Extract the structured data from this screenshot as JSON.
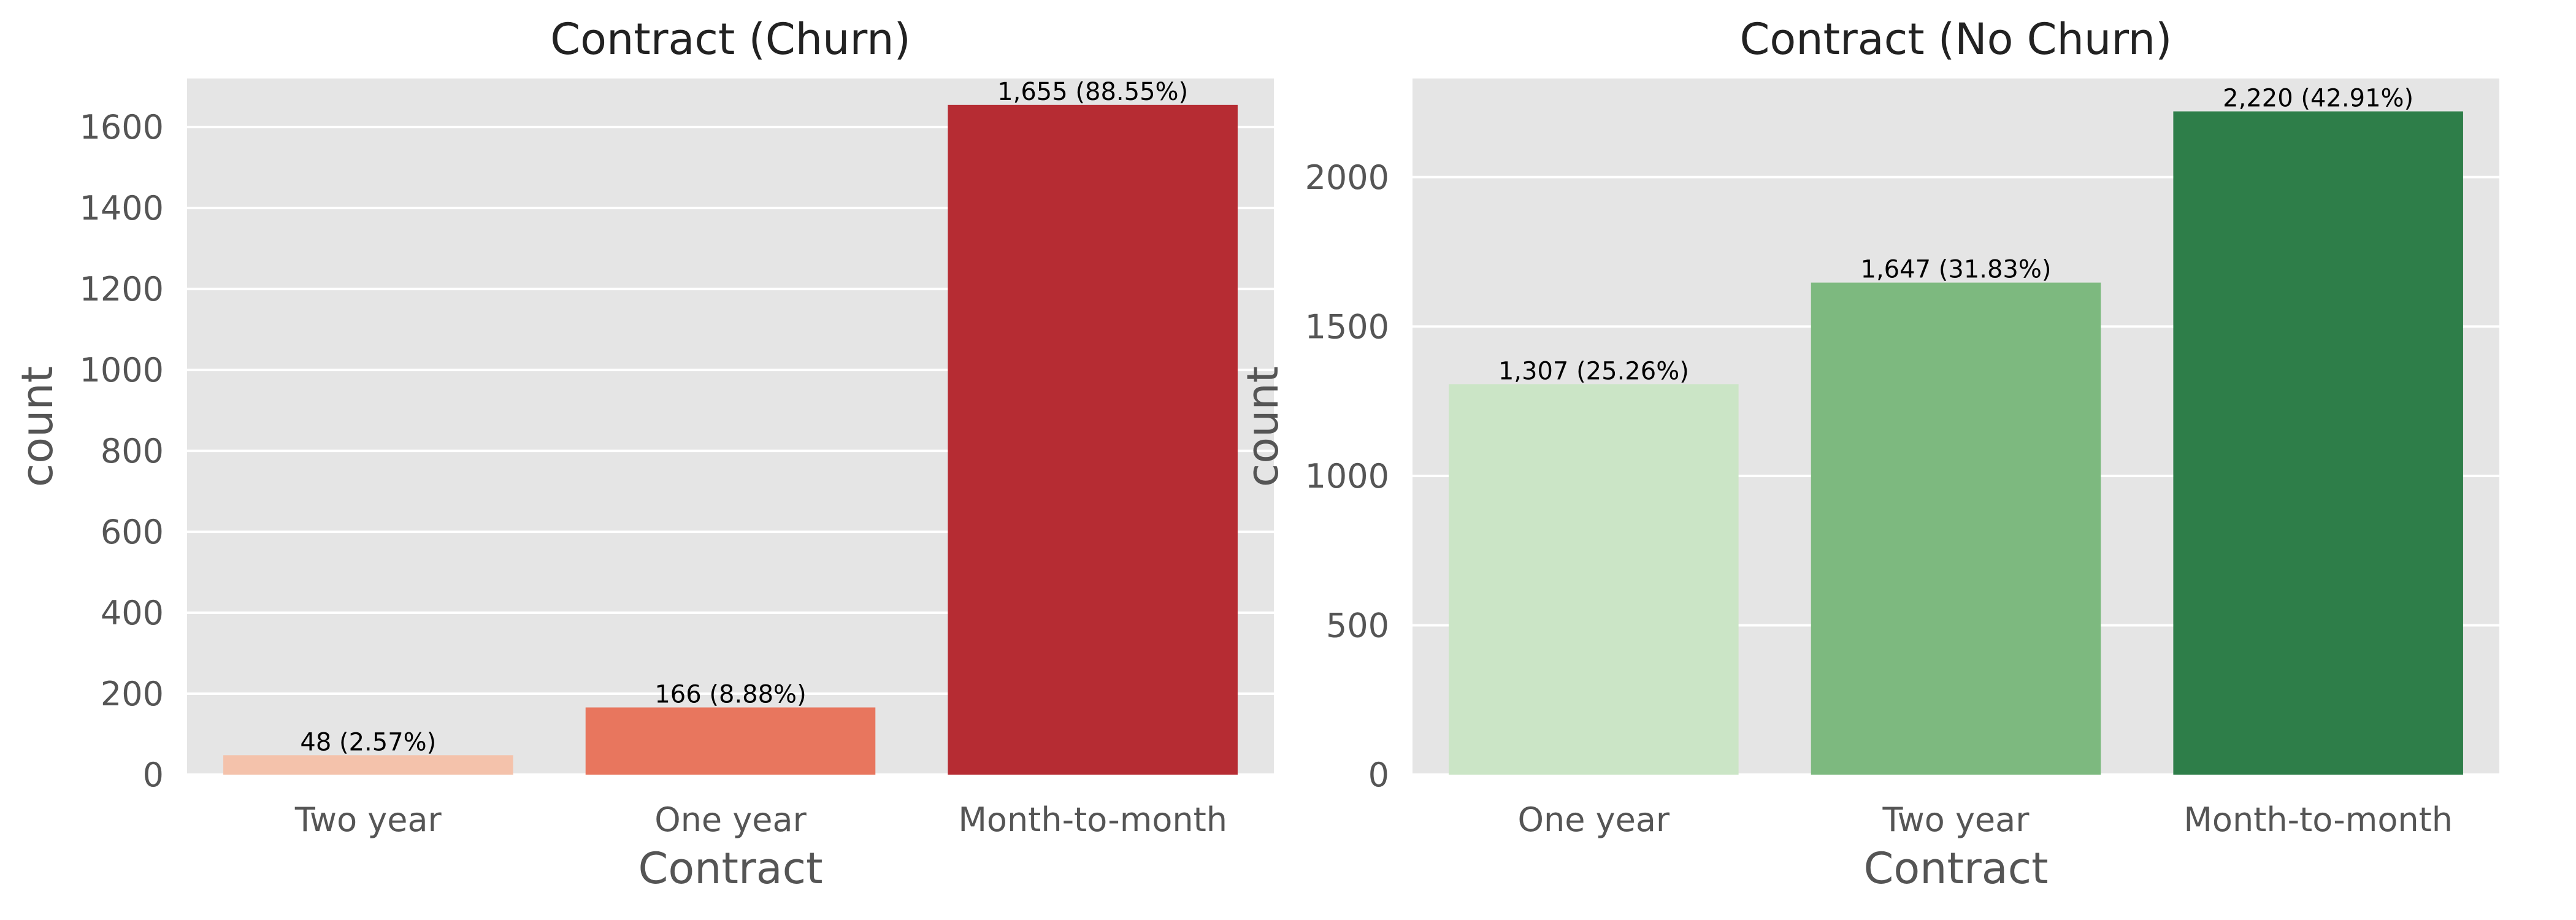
{
  "chart_data": [
    {
      "type": "bar",
      "title": "Contract (Churn)",
      "xlabel": "Contract",
      "ylabel": "count",
      "categories": [
        "Two year",
        "One year",
        "Month-to-month"
      ],
      "values": [
        48,
        166,
        1655
      ],
      "data_labels": [
        "48 (2.57%)",
        "166 (8.88%)",
        "1,655 (88.55%)"
      ],
      "colors": [
        "#f4c2ab",
        "#e8765e",
        "#b62c33"
      ],
      "ylim": [
        0,
        1720
      ],
      "yticks": [
        0,
        200,
        400,
        600,
        800,
        1000,
        1200,
        1400,
        1600
      ],
      "grid": true,
      "legend": "none"
    },
    {
      "type": "bar",
      "title": "Contract (No Churn)",
      "xlabel": "Contract",
      "ylabel": "count",
      "categories": [
        "One year",
        "Two year",
        "Month-to-month"
      ],
      "values": [
        1307,
        1647,
        2220
      ],
      "data_labels": [
        "1,307 (25.26%)",
        "1,647 (31.83%)",
        "2,220 (42.91%)"
      ],
      "colors": [
        "#cbe5c6",
        "#7db97f",
        "#2e7e49"
      ],
      "ylim": [
        0,
        2330
      ],
      "yticks": [
        0,
        500,
        1000,
        1500,
        2000
      ],
      "grid": true,
      "legend": "none"
    }
  ]
}
